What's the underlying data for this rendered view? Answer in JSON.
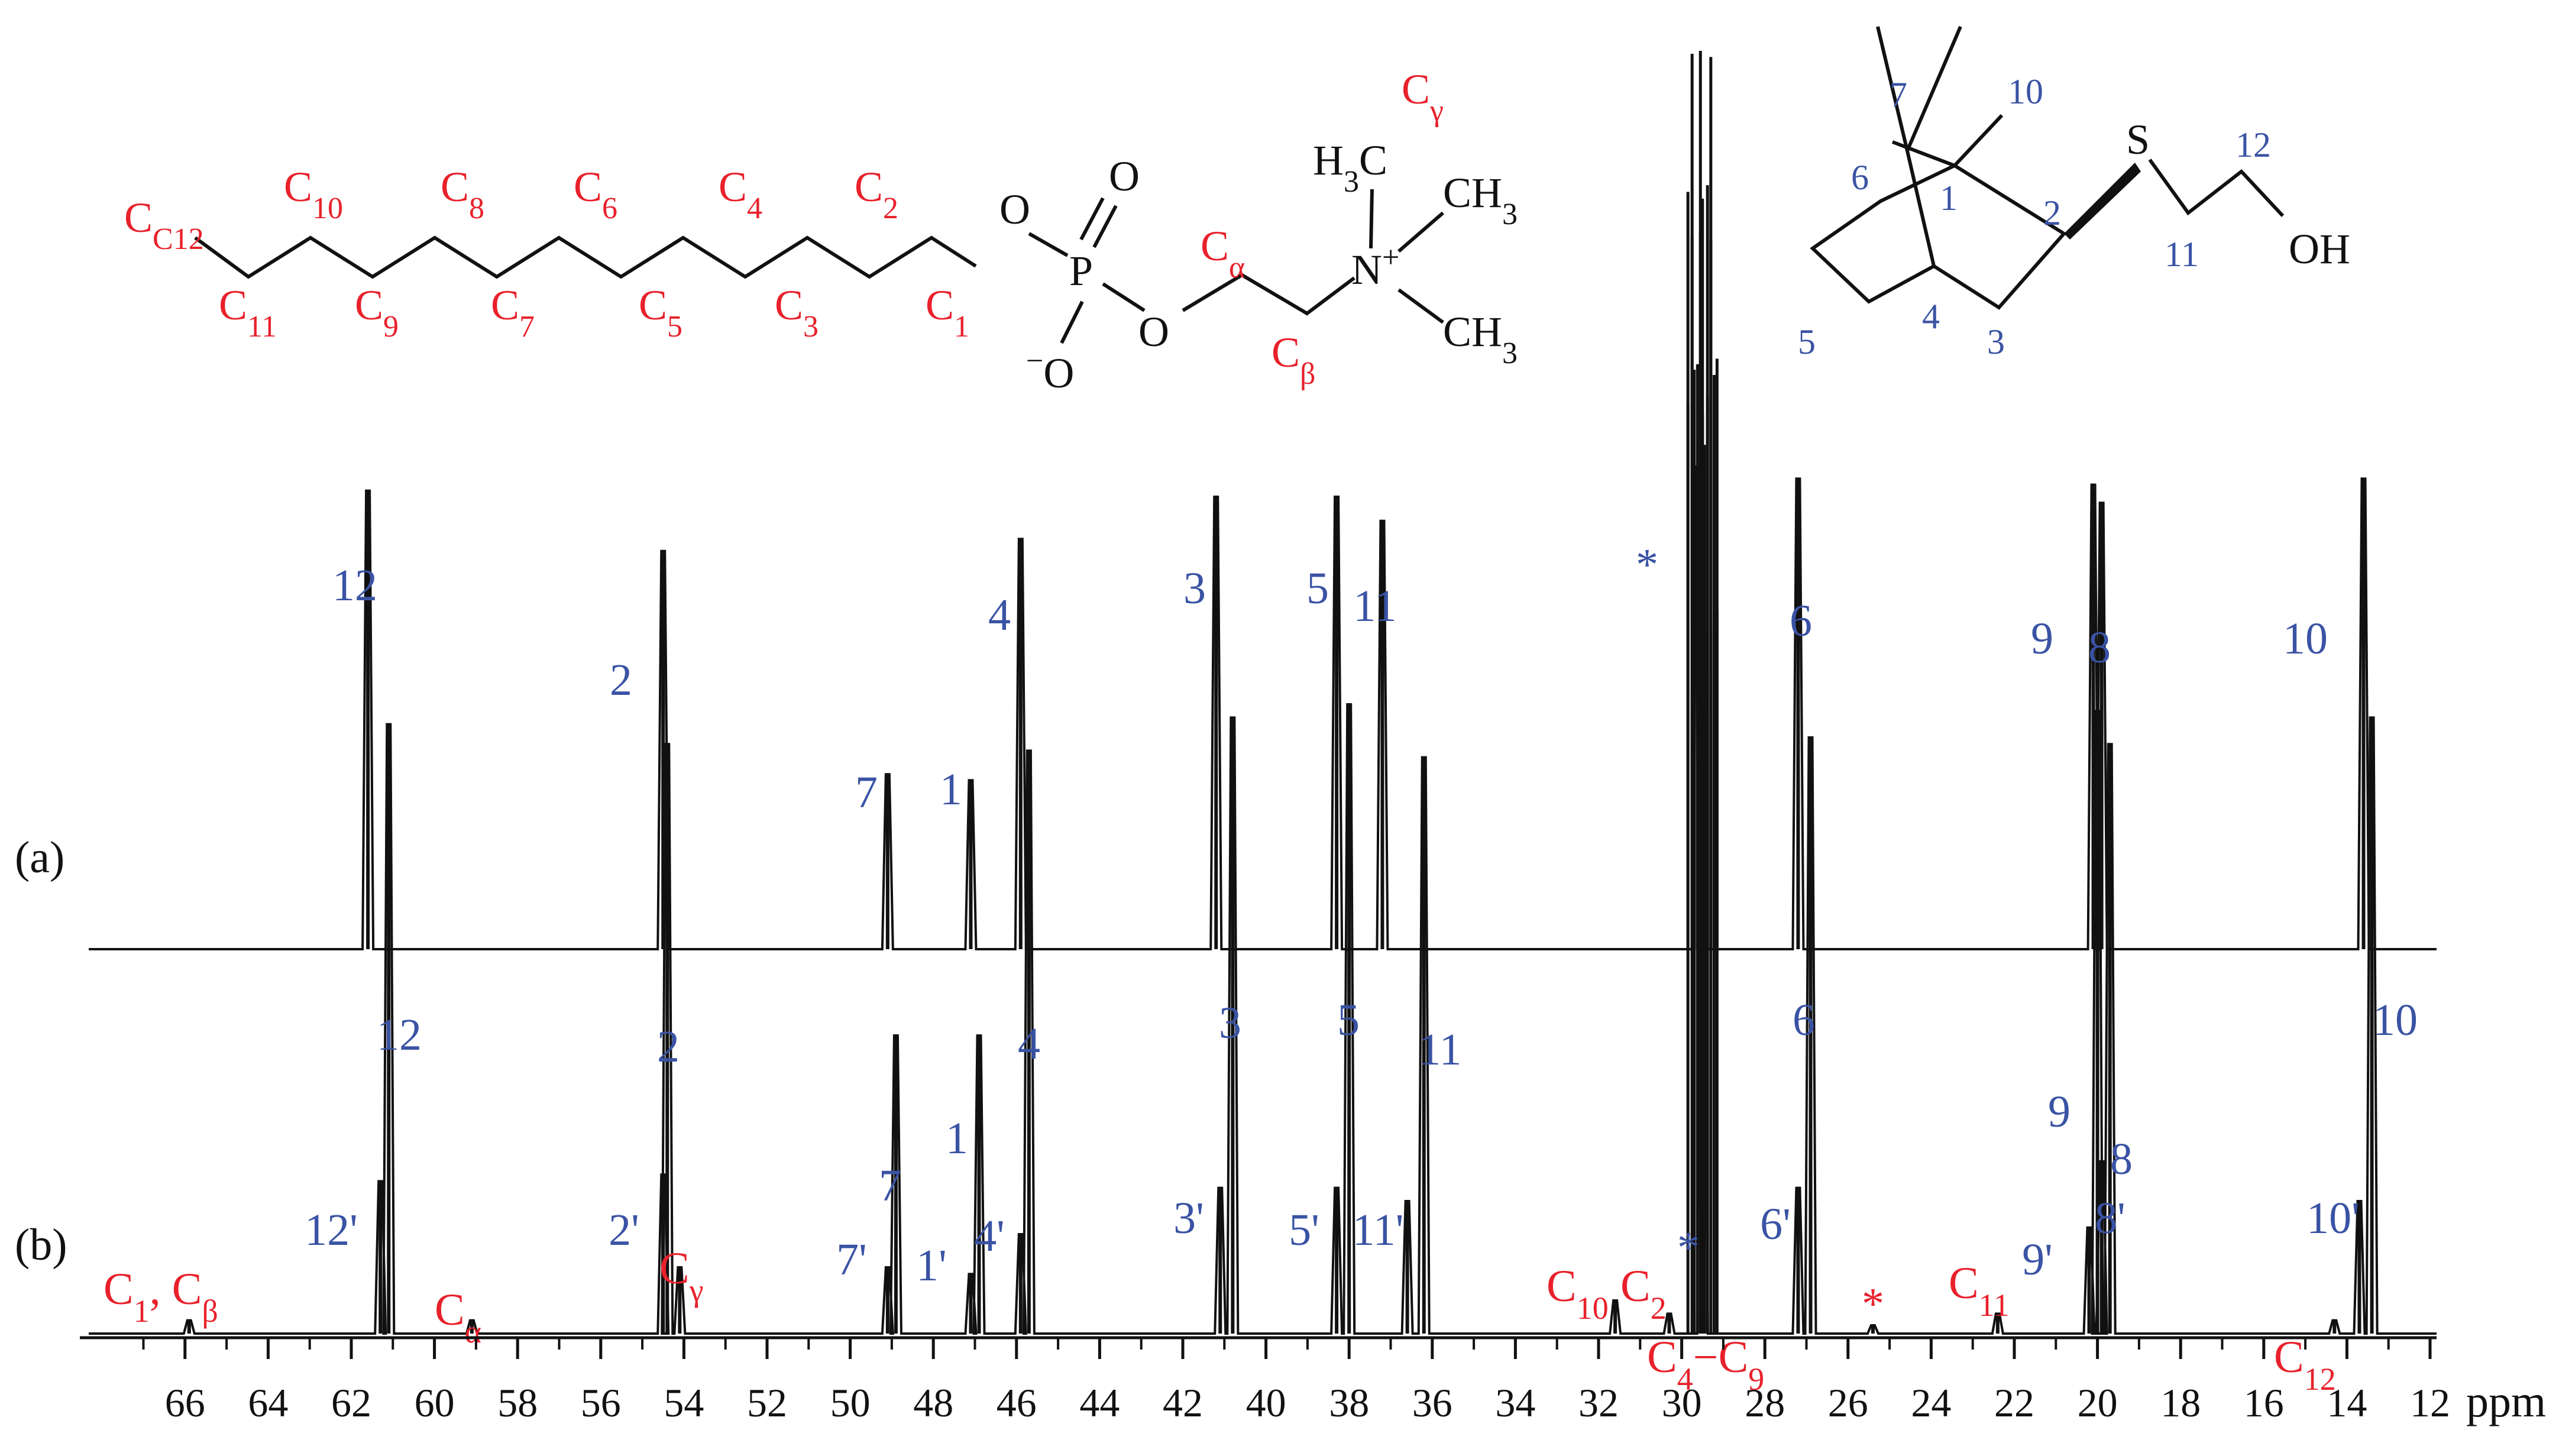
{
  "chart_data": {
    "type": "line",
    "title": "",
    "xlabel": "ppm",
    "ylabel": "",
    "x_reversed": true,
    "xlim": [
      68,
      11
    ],
    "x_ticks": [
      66,
      64,
      62,
      60,
      58,
      56,
      54,
      52,
      50,
      48,
      46,
      44,
      42,
      40,
      38,
      36,
      34,
      32,
      30,
      28,
      26,
      24,
      22,
      20,
      18,
      16,
      14,
      12
    ],
    "tick_labels": [
      "66",
      "64",
      "62",
      "60",
      "58",
      "56",
      "54",
      "52",
      "50",
      "48",
      "46",
      "44",
      "42",
      "40",
      "38",
      "36",
      "34",
      "32",
      "30",
      "28",
      "26",
      "24",
      "22",
      "20",
      "18",
      "16",
      "14",
      "12"
    ],
    "grid": false,
    "spectra": [
      {
        "name": "(a)",
        "label": "(a)",
        "peaks": [
          {
            "label": "12",
            "ppm": 61.6,
            "height": 0.76
          },
          {
            "label": "2",
            "ppm": 54.5,
            "height": 0.66
          },
          {
            "label": "7",
            "ppm": 49.1,
            "height": 0.29
          },
          {
            "label": "1",
            "ppm": 47.1,
            "height": 0.28
          },
          {
            "label": "4",
            "ppm": 45.9,
            "height": 0.68
          },
          {
            "label": "3",
            "ppm": 41.2,
            "height": 0.75
          },
          {
            "label": "5",
            "ppm": 38.3,
            "height": 0.75
          },
          {
            "label": "11",
            "ppm": 37.2,
            "height": 0.71
          },
          {
            "label": "*",
            "ppm": 29.6,
            "height": 0.8
          },
          {
            "label": "6",
            "ppm": 27.2,
            "height": 0.78
          },
          {
            "label": "9",
            "ppm": 20.1,
            "height": 0.77
          },
          {
            "label": "8",
            "ppm": 19.9,
            "height": 0.74
          },
          {
            "label": "10",
            "ppm": 13.6,
            "height": 0.78
          }
        ]
      },
      {
        "name": "(b)",
        "label": "(b)",
        "peaks": [
          {
            "label": "12",
            "ppm": 61.1,
            "height": 0.92
          },
          {
            "label": "12'",
            "ppm": 61.3,
            "height": 0.23
          },
          {
            "label": "2",
            "ppm": 54.4,
            "height": 0.89
          },
          {
            "label": "2'",
            "ppm": 54.5,
            "height": 0.24
          },
          {
            "label": "Cγ",
            "ppm": 54.1,
            "height": 0.1
          },
          {
            "label": "Cα",
            "ppm": 59.1,
            "height": 0.02
          },
          {
            "label": "7",
            "ppm": 48.9,
            "height": 0.45
          },
          {
            "label": "7'",
            "ppm": 49.1,
            "height": 0.1
          },
          {
            "label": "1",
            "ppm": 46.9,
            "height": 0.45
          },
          {
            "label": "1'",
            "ppm": 47.1,
            "height": 0.09
          },
          {
            "label": "4",
            "ppm": 45.7,
            "height": 0.88
          },
          {
            "label": "4'",
            "ppm": 45.9,
            "height": 0.15
          },
          {
            "label": "3",
            "ppm": 40.8,
            "height": 0.93
          },
          {
            "label": "3'",
            "ppm": 41.1,
            "height": 0.22
          },
          {
            "label": "5",
            "ppm": 38.0,
            "height": 0.95
          },
          {
            "label": "5'",
            "ppm": 38.3,
            "height": 0.22
          },
          {
            "label": "11",
            "ppm": 36.2,
            "height": 0.87
          },
          {
            "label": "11'",
            "ppm": 36.6,
            "height": 0.2
          },
          {
            "label": "C10",
            "ppm": 31.6,
            "height": 0.05
          },
          {
            "label": "C2",
            "ppm": 30.3,
            "height": 0.03
          },
          {
            "label": "C4−C9",
            "ppm": 29.5,
            "height": 1.0
          },
          {
            "label": "6",
            "ppm": 26.9,
            "height": 0.9
          },
          {
            "label": "6'",
            "ppm": 27.2,
            "height": 0.22
          },
          {
            "label": "*",
            "ppm": 25.4,
            "height": 0.01
          },
          {
            "label": "C11",
            "ppm": 22.4,
            "height": 0.03
          },
          {
            "label": "9",
            "ppm": 20.0,
            "height": 0.94
          },
          {
            "label": "9'",
            "ppm": 20.2,
            "height": 0.16
          },
          {
            "label": "8",
            "ppm": 19.7,
            "height": 0.89
          },
          {
            "label": "8'",
            "ppm": 19.9,
            "height": 0.26
          },
          {
            "label": "10",
            "ppm": 13.4,
            "height": 0.93
          },
          {
            "label": "10'",
            "ppm": 13.7,
            "height": 0.2
          },
          {
            "label": "C12",
            "ppm": 14.3,
            "height": 0.02
          },
          {
            "label": "C1, Cβ",
            "ppm": 65.9,
            "height": 0.02
          }
        ]
      }
    ]
  },
  "annotations": {
    "spectrum_b_extra": [
      "*"
    ],
    "surfactant_labels": [
      "C12",
      "C11",
      "C10",
      "C9",
      "C8",
      "C7",
      "C6",
      "C5",
      "C4",
      "C3",
      "C2",
      "C1",
      "Cα",
      "Cβ",
      "Cγ"
    ],
    "surfactant_atoms": [
      "O",
      "O",
      "P",
      "O",
      "O",
      "N",
      "H3C",
      "CH3",
      "CH3"
    ],
    "surfactant_charges": [
      "+",
      "−"
    ],
    "ligand_labels": [
      "1",
      "2",
      "3",
      "4",
      "5",
      "6",
      "7",
      "10",
      "11",
      "12"
    ],
    "ligand_atoms": [
      "S",
      "OH"
    ]
  },
  "colors": {
    "spectrum_line": "#111111",
    "ligand_labels": "#3a53a4",
    "surfactant_labels": "#e8212b",
    "structure_lines": "#111111"
  }
}
